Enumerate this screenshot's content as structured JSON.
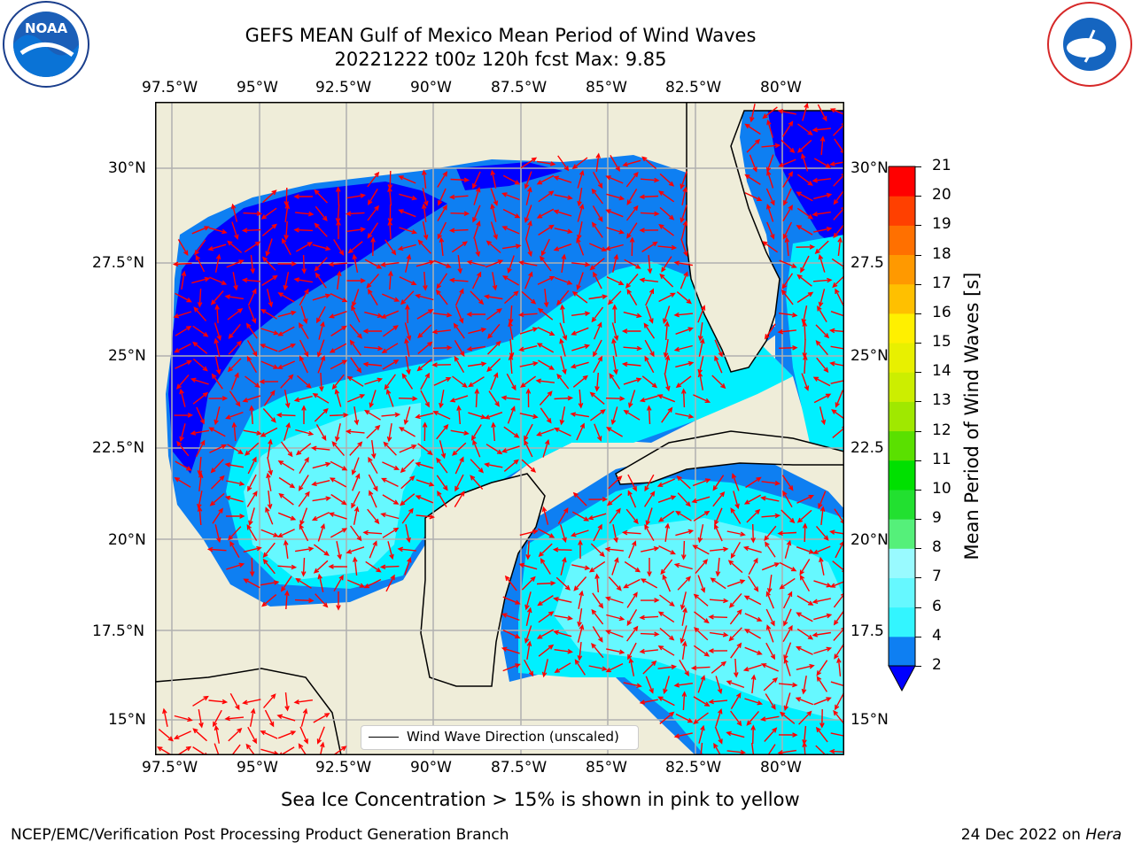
{
  "title": {
    "line1": "GEFS MEAN Gulf of Mexico Mean Period of Wind Waves",
    "line2": "20221222 t00z 120h fcst   Max: 9.85"
  },
  "map": {
    "lon_labels": [
      "97.5°W",
      "95°W",
      "92.5°W",
      "90°W",
      "87.5°W",
      "85°W",
      "82.5°W",
      "80°W"
    ],
    "lat_labels_left": [
      "30°N",
      "27.5°N",
      "25°N",
      "22.5°N",
      "20°N",
      "17.5°N",
      "15°N"
    ],
    "lat_labels_right": [
      "30°N",
      "27.5",
      "25°N",
      "22.5",
      "20°N",
      "17.5",
      "15°N"
    ],
    "lon_range": [
      -98,
      -78.2
    ],
    "lat_range": [
      14,
      31.6
    ],
    "legend_text": "Wind Wave Direction (unscaled)",
    "land_color": "#efedd9",
    "arrow_color": "#ff0000"
  },
  "colorbar": {
    "label": "Mean Period of Wind Waves [s]",
    "tick_labels": [
      "2",
      "4",
      "6",
      "7",
      "8",
      "9",
      "10",
      "11",
      "12",
      "13",
      "14",
      "15",
      "16",
      "17",
      "18",
      "19",
      "20",
      "21"
    ],
    "colors": [
      "#0e7ff2",
      "#00f0ff",
      "#33f5ff",
      "#66f8ff",
      "#99faff",
      "#55f07a",
      "#22e030",
      "#00e000",
      "#5ae000",
      "#a0e800",
      "#ccee00",
      "#e8f000",
      "#fff000",
      "#ffc000",
      "#ff9900",
      "#ff7000",
      "#ff4000",
      "#ff0000"
    ],
    "under_color": "#0000ff"
  },
  "footnote": "Sea Ice Concentration > 15% is shown in pink to yellow",
  "credit": "NCEP/EMC/Verification Post Processing Product Generation Branch",
  "date_text": "24 Dec 2022 on",
  "machine": "Hera",
  "logos": {
    "left": "NOAA",
    "right": "NATIONAL WEATHER SERVICE"
  }
}
